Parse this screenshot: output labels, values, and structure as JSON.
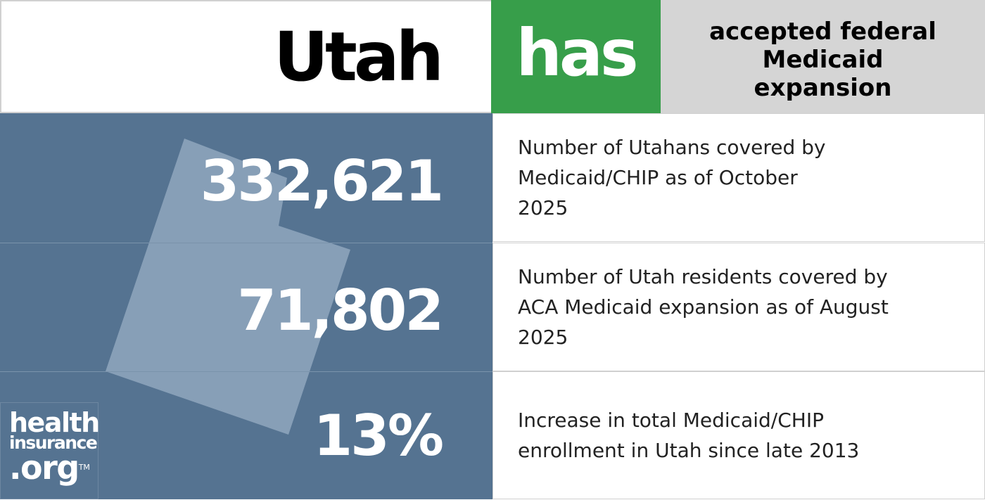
{
  "header": {
    "state": "Utah",
    "status": "has",
    "status_color": "#379e4a",
    "description": "accepted federal Medicaid expansion"
  },
  "stats": [
    {
      "value": "332,621",
      "label": "Number of Utahans covered by Medicaid/CHIP as of October 2025"
    },
    {
      "value": "71,802",
      "label": "Number of Utah residents covered by ACA Medicaid expansion as of August 2025"
    },
    {
      "value": "13%",
      "label": "Increase in total Medicaid/CHIP enrollment in Utah since late 2013"
    }
  ],
  "logo": {
    "line1": "health",
    "line2": "insurance",
    "line3": ".org",
    "tm": "TM"
  },
  "colors": {
    "panel": "#557391",
    "state_shape": "#8aa1b9"
  }
}
